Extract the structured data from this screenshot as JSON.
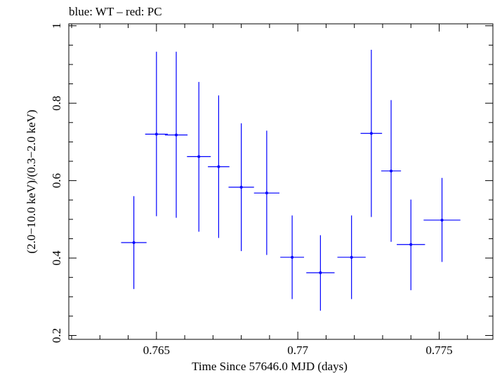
{
  "chart_data": {
    "type": "scatter",
    "title": "blue: WT – red: PC",
    "xlabel": "Time Since 57646.0 MJD (days)",
    "ylabel": "(2.0−10.0 keV)/(0.3−2.0 keV)",
    "xlim": [
      0.7619,
      0.7769
    ],
    "ylim": [
      0.19,
      1.005
    ],
    "x_ticks": [
      0.765,
      0.77,
      0.775
    ],
    "x_tick_labels": [
      "0.765",
      "0.77",
      "0.775"
    ],
    "y_ticks": [
      0.2,
      0.4,
      0.6,
      0.8,
      1.0
    ],
    "y_tick_labels": [
      "0.2",
      "0.4",
      "0.6",
      "0.8",
      "1"
    ],
    "grid": false,
    "series_color": "#0000ff",
    "axis_color": "#000000",
    "series": [
      {
        "points": [
          {
            "x": 0.7642,
            "y": 0.44,
            "xerr": 0.00045,
            "ylo": 0.32,
            "yhi": 0.56
          },
          {
            "x": 0.765,
            "y": 0.72,
            "xerr": 0.0004,
            "ylo": 0.508,
            "yhi": 0.933
          },
          {
            "x": 0.7657,
            "y": 0.718,
            "xerr": 0.0004,
            "ylo": 0.504,
            "yhi": 0.933
          },
          {
            "x": 0.7665,
            "y": 0.662,
            "xerr": 0.00042,
            "ylo": 0.468,
            "yhi": 0.855
          },
          {
            "x": 0.7672,
            "y": 0.636,
            "xerr": 0.00038,
            "ylo": 0.452,
            "yhi": 0.82
          },
          {
            "x": 0.768,
            "y": 0.583,
            "xerr": 0.00045,
            "ylo": 0.418,
            "yhi": 0.748
          },
          {
            "x": 0.7689,
            "y": 0.568,
            "xerr": 0.00045,
            "ylo": 0.408,
            "yhi": 0.729
          },
          {
            "x": 0.7698,
            "y": 0.402,
            "xerr": 0.00042,
            "ylo": 0.294,
            "yhi": 0.51
          },
          {
            "x": 0.7708,
            "y": 0.362,
            "xerr": 0.0005,
            "ylo": 0.264,
            "yhi": 0.459
          },
          {
            "x": 0.7719,
            "y": 0.402,
            "xerr": 0.0005,
            "ylo": 0.294,
            "yhi": 0.51
          },
          {
            "x": 0.7726,
            "y": 0.722,
            "xerr": 0.00038,
            "ylo": 0.506,
            "yhi": 0.938
          },
          {
            "x": 0.7733,
            "y": 0.625,
            "xerr": 0.00035,
            "ylo": 0.442,
            "yhi": 0.808
          },
          {
            "x": 0.774,
            "y": 0.435,
            "xerr": 0.0005,
            "ylo": 0.317,
            "yhi": 0.551
          },
          {
            "x": 0.7751,
            "y": 0.498,
            "xerr": 0.00065,
            "ylo": 0.39,
            "yhi": 0.607
          }
        ]
      }
    ]
  }
}
